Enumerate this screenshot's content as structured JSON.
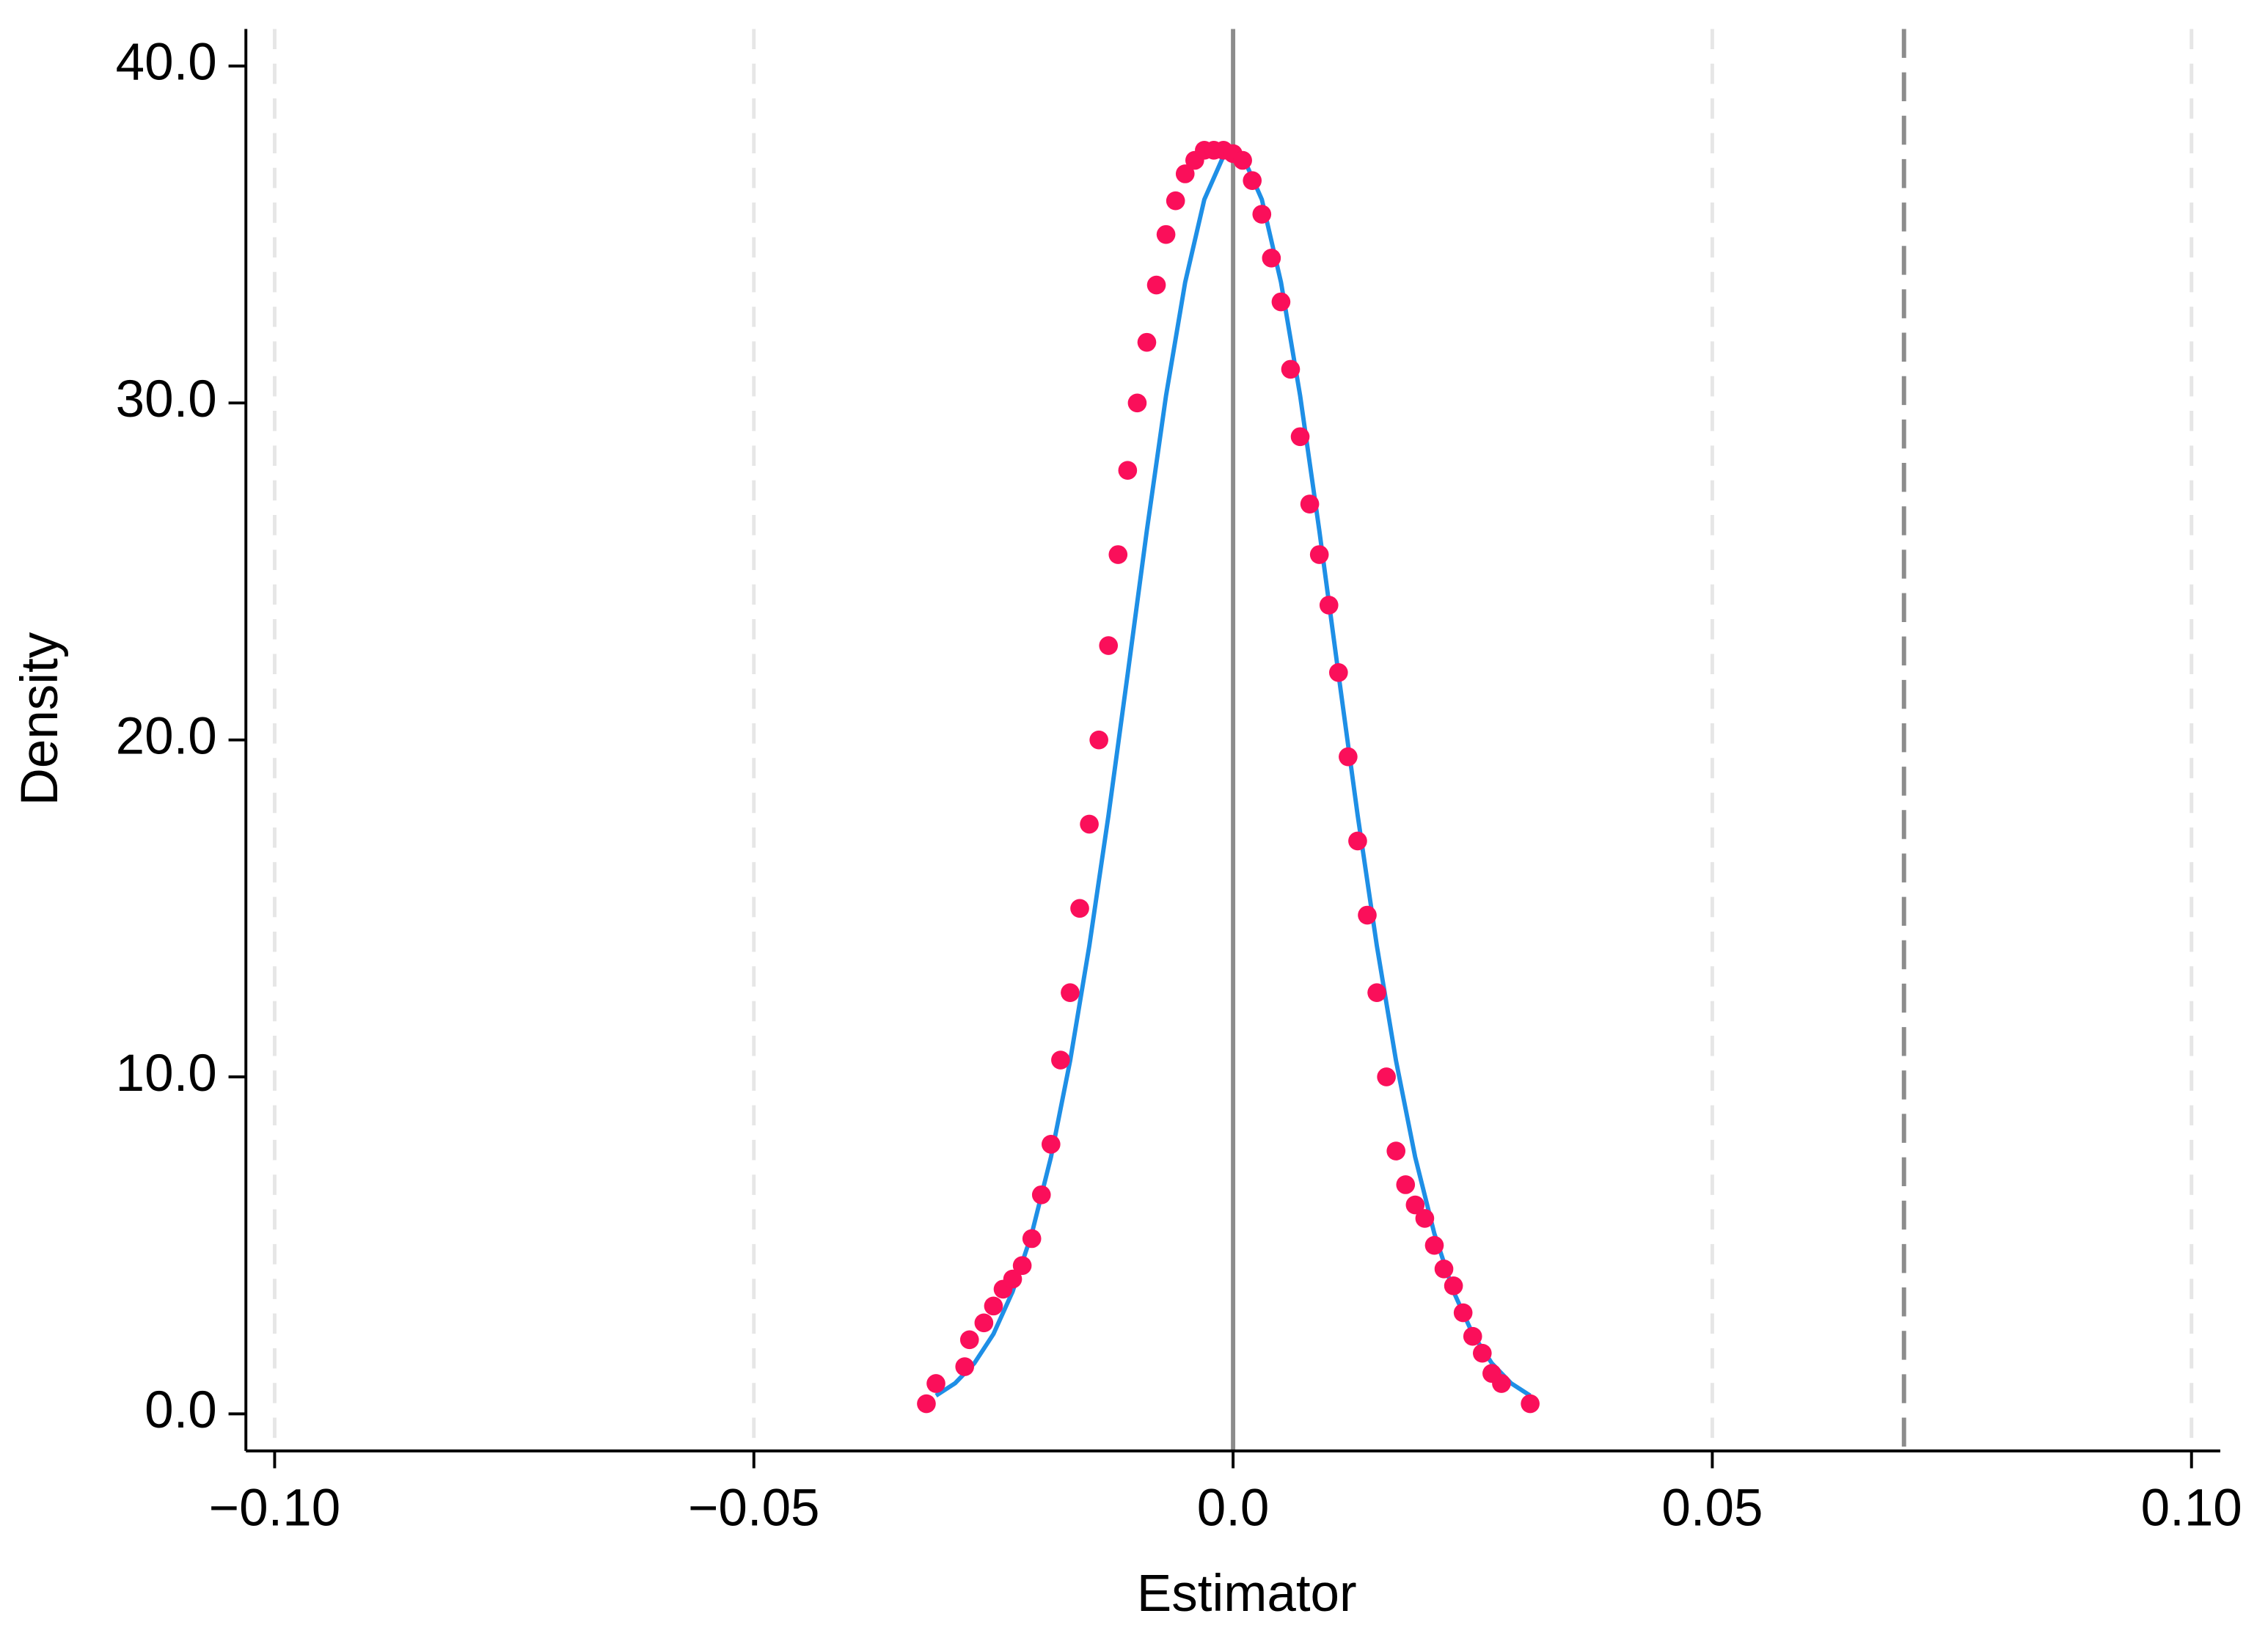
{
  "chart_data": {
    "type": "scatter",
    "xlabel": "Estimator",
    "ylabel": "Density",
    "xlim": [
      -0.103,
      0.103
    ],
    "ylim": [
      -1.1,
      41.1
    ],
    "xticks": [
      {
        "value": -0.1,
        "label": "−0.10"
      },
      {
        "value": -0.05,
        "label": "−0.05"
      },
      {
        "value": 0,
        "label": "0.0"
      },
      0.05,
      {
        "value": 0.1,
        "label": "0.10"
      }
    ],
    "yticks": [
      {
        "value": 0,
        "label": "0.0"
      },
      {
        "value": 10,
        "label": "10.0"
      },
      {
        "value": 20,
        "label": "20.0"
      },
      {
        "value": 30,
        "label": "30.0"
      },
      {
        "value": 40,
        "label": "40.0"
      }
    ],
    "xgrid": true,
    "grid_color": "#e6e6e6",
    "vlines": [
      {
        "value": 0,
        "color": "#8c8c8c",
        "dashed": false
      },
      {
        "value": 0.07,
        "color": "#8c8c8c",
        "dashed": true
      }
    ],
    "series": [
      {
        "type": "line",
        "color": "#1e8fe6",
        "x": [
          -0.031,
          -0.029,
          -0.027,
          -0.025,
          -0.023,
          -0.021,
          -0.019,
          -0.017,
          -0.015,
          -0.013,
          -0.011,
          -0.009,
          -0.007,
          -0.005,
          -0.003,
          -0.001,
          0.001,
          0.003,
          0.005,
          0.007,
          0.009,
          0.011,
          0.013,
          0.015,
          0.017,
          0.019,
          0.021,
          0.023,
          0.025,
          0.027,
          0.029,
          0.031
        ],
        "values": [
          0.54,
          0.91,
          1.5,
          2.37,
          3.63,
          5.35,
          7.62,
          10.48,
          13.89,
          17.76,
          21.95,
          26.21,
          30.21,
          33.58,
          36.04,
          37.33,
          37.33,
          36.04,
          33.58,
          30.21,
          26.21,
          21.95,
          17.76,
          13.89,
          10.48,
          7.62,
          5.35,
          3.63,
          2.37,
          1.5,
          0.91,
          0.54
        ]
      },
      {
        "type": "scatter",
        "color": "#fa0f5a",
        "x": [
          -0.032,
          -0.031,
          -0.028,
          -0.0275,
          -0.026,
          -0.025,
          -0.024,
          -0.023,
          -0.022,
          -0.021,
          -0.02,
          -0.019,
          -0.018,
          -0.017,
          -0.016,
          -0.015,
          -0.014,
          -0.013,
          -0.012,
          -0.011,
          -0.01,
          -0.009,
          -0.008,
          -0.007,
          -0.006,
          -0.005,
          -0.004,
          -0.003,
          -0.002,
          -0.001,
          0,
          0.001,
          0.002,
          0.003,
          0.004,
          0.005,
          0.006,
          0.007,
          0.008,
          0.009,
          0.01,
          0.011,
          0.012,
          0.013,
          0.014,
          0.015,
          0.016,
          0.017,
          0.018,
          0.019,
          0.02,
          0.021,
          0.022,
          0.023,
          0.024,
          0.025,
          0.026,
          0.027,
          0.028,
          0.031
        ],
        "values": [
          0.3,
          0.9,
          1.4,
          2.2,
          2.7,
          3.2,
          3.7,
          4.0,
          4.4,
          5.2,
          6.5,
          8.0,
          10.5,
          12.5,
          15.0,
          17.5,
          20.0,
          22.8,
          25.5,
          28.0,
          30.0,
          31.8,
          33.5,
          35.0,
          36.0,
          36.8,
          37.2,
          37.5,
          37.5,
          37.5,
          37.4,
          37.2,
          36.6,
          35.6,
          34.3,
          33.0,
          31.0,
          29.0,
          27.0,
          25.5,
          24.0,
          22.0,
          19.5,
          17.0,
          14.8,
          12.5,
          10.0,
          7.8,
          6.8,
          6.2,
          5.8,
          5.0,
          4.3,
          3.8,
          3.0,
          2.3,
          1.8,
          1.2,
          0.9,
          0.3
        ]
      }
    ]
  }
}
